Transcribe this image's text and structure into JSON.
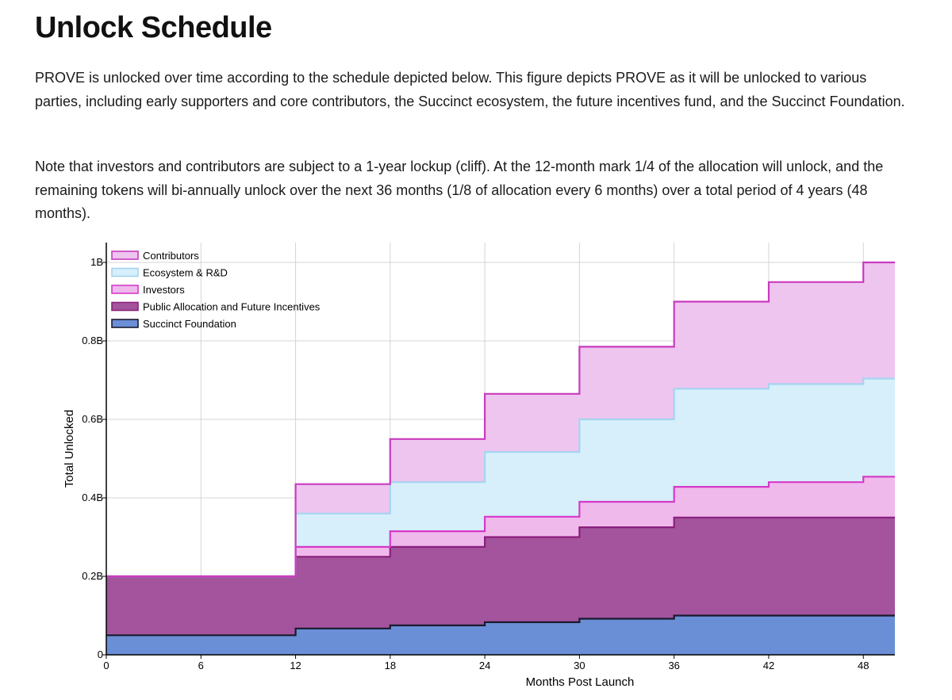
{
  "page": {
    "title": "Unlock Schedule",
    "paragraphs": [
      "PROVE is unlocked over time according to the schedule depicted below. This figure depicts PROVE as it will be unlocked to various parties, including early supporters and core contributors, the Succinct ecosystem, the future incentives fund, and the Succinct Foundation.",
      "Note that investors and contributors are subject to a 1-year lockup (cliff). At the 12-month mark 1/4 of the allocation will unlock, and the remaining tokens will bi-annually unlock over the next 36 months (1/8 of allocation every 6 months) over a total period of 4 years (48 months)."
    ]
  },
  "chart_data": {
    "type": "area",
    "stacked": true,
    "step": true,
    "title": "",
    "xlabel": "Months Post Launch",
    "ylabel": "Total Unlocked",
    "xlim": [
      0,
      50
    ],
    "ylim": [
      0,
      1000000000
    ],
    "x_ticks": [
      0,
      6,
      12,
      18,
      24,
      30,
      36,
      42,
      48
    ],
    "x_tick_labels": [
      "0",
      "6",
      "12",
      "18",
      "24",
      "30",
      "36",
      "42",
      "48"
    ],
    "y_ticks": [
      0,
      200000000,
      400000000,
      600000000,
      800000000,
      1000000000
    ],
    "y_tick_labels": [
      "0",
      "0.2B",
      "0.4B",
      "0.6B",
      "0.8B",
      "1B"
    ],
    "grid": true,
    "legend_position": "top-left",
    "x": [
      0,
      12,
      18,
      24,
      30,
      36,
      42,
      48,
      50
    ],
    "series": [
      {
        "name": "Succinct Foundation",
        "fill": "#6b8fd6",
        "stroke": "#1a1a2e",
        "values": [
          0.05,
          0.067,
          0.075,
          0.083,
          0.092,
          0.1,
          0.1,
          0.1,
          0.1
        ]
      },
      {
        "name": "Public Allocation and Future Incentives",
        "fill": "#a3549d",
        "stroke": "#8a1f7d",
        "values": [
          0.15,
          0.183,
          0.2,
          0.217,
          0.233,
          0.25,
          0.25,
          0.25,
          0.25
        ]
      },
      {
        "name": "Investors",
        "fill": "#f0b9ec",
        "stroke": "#d639c8",
        "values": [
          0,
          0.025,
          0.04,
          0.052,
          0.065,
          0.078,
          0.09,
          0.104,
          0.104
        ]
      },
      {
        "name": "Ecosystem & R&D",
        "fill": "#d6effb",
        "stroke": "#a6d4ef",
        "values": [
          0,
          0.085,
          0.125,
          0.165,
          0.21,
          0.25,
          0.25,
          0.25,
          0.25
        ]
      },
      {
        "name": "Contributors",
        "fill": "#edc5ef",
        "stroke": "#c93bbf",
        "values": [
          0,
          0.075,
          0.11,
          0.148,
          0.185,
          0.222,
          0.26,
          0.296,
          0.296
        ]
      }
    ],
    "legend_order": [
      "Contributors",
      "Ecosystem & R&D",
      "Investors",
      "Public Allocation and Future Incentives",
      "Succinct Foundation"
    ]
  }
}
